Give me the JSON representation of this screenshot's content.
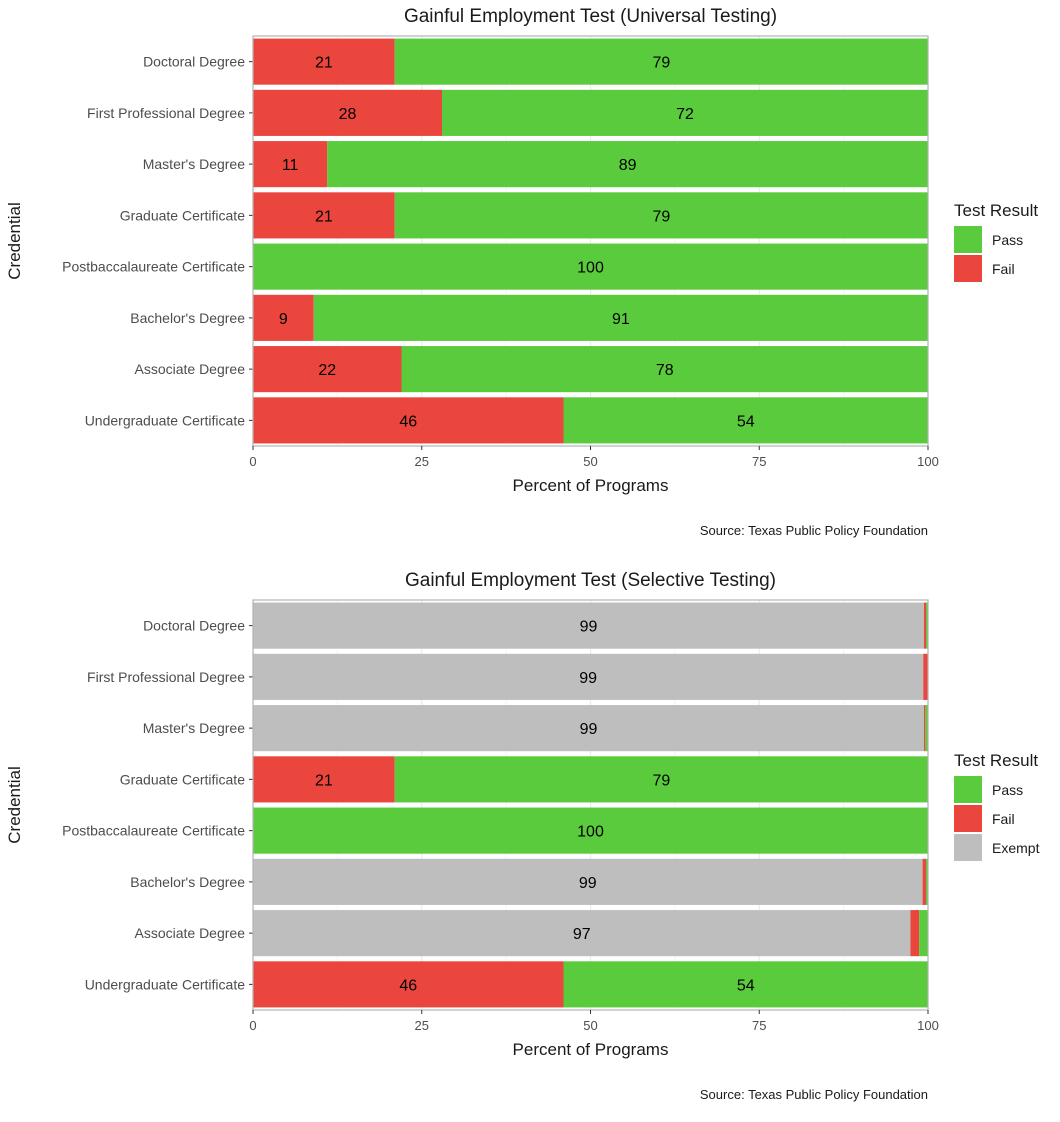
{
  "colors": {
    "Pass": "#5ACB3C",
    "Fail": "#EA463E",
    "Exempt": "#BEBEBE",
    "grid": "#EBEBEB",
    "panel_border": "#B3B3B3"
  },
  "chart_data": [
    {
      "type": "bar",
      "orientation": "horizontal",
      "stacked": true,
      "title": "Gainful Employment Test (Universal Testing)",
      "xlabel": "Percent of Programs",
      "ylabel": "Credential",
      "xlim": [
        0,
        100
      ],
      "xticks": [
        "0",
        "25",
        "50",
        "75",
        "100"
      ],
      "categories": [
        "Doctoral Degree",
        "First Professional Degree",
        "Master's Degree",
        "Graduate Certificate",
        "Postbaccalaureate Certificate",
        "Bachelor's Degree",
        "Associate Degree",
        "Undergraduate Certificate"
      ],
      "series": [
        {
          "name": "Fail",
          "values": [
            21,
            28,
            11,
            21,
            0,
            9,
            22,
            46
          ]
        },
        {
          "name": "Pass",
          "values": [
            79,
            72,
            89,
            79,
            100,
            91,
            78,
            54
          ]
        }
      ],
      "labels": {
        "Fail": [
          "21",
          "28",
          "11",
          "21",
          "",
          "9",
          "22",
          "46"
        ],
        "Pass": [
          "79",
          "72",
          "89",
          "79",
          "100",
          "91",
          "78",
          "54"
        ]
      },
      "legend": {
        "title": "Test Result",
        "entries": [
          "Pass",
          "Fail"
        ],
        "position": "right"
      },
      "caption": "Source: Texas Public Policy Foundation",
      "grid": true
    },
    {
      "type": "bar",
      "orientation": "horizontal",
      "stacked": true,
      "title": "Gainful Employment Test (Selective Testing)",
      "xlabel": "Percent of Programs",
      "ylabel": "Credential",
      "xlim": [
        0,
        100
      ],
      "xticks": [
        "0",
        "25",
        "50",
        "75",
        "100"
      ],
      "categories": [
        "Doctoral Degree",
        "First Professional Degree",
        "Master's Degree",
        "Graduate Certificate",
        "Postbaccalaureate Certificate",
        "Bachelor's Degree",
        "Associate Degree",
        "Undergraduate Certificate"
      ],
      "series": [
        {
          "name": "Exempt",
          "values": [
            99.4,
            99.3,
            99.4,
            0,
            0,
            99.2,
            97.4,
            0
          ]
        },
        {
          "name": "Fail",
          "values": [
            0.3,
            0.7,
            0.2,
            21,
            0,
            0.5,
            1.3,
            46
          ]
        },
        {
          "name": "Pass",
          "values": [
            0.3,
            0,
            0.4,
            79,
            100,
            0.3,
            1.3,
            54
          ]
        }
      ],
      "labels": {
        "Exempt": [
          "99",
          "99",
          "99",
          "",
          "",
          "99",
          "97",
          ""
        ],
        "Fail": [
          "",
          "",
          "",
          "21",
          "",
          "",
          "",
          "46"
        ],
        "Pass": [
          "",
          "",
          "",
          "79",
          "100",
          "",
          "",
          "54"
        ]
      },
      "legend": {
        "title": "Test Result",
        "entries": [
          "Pass",
          "Fail",
          "Exempt"
        ],
        "position": "right"
      },
      "caption": "Source: Texas Public Policy Foundation",
      "grid": true
    }
  ]
}
